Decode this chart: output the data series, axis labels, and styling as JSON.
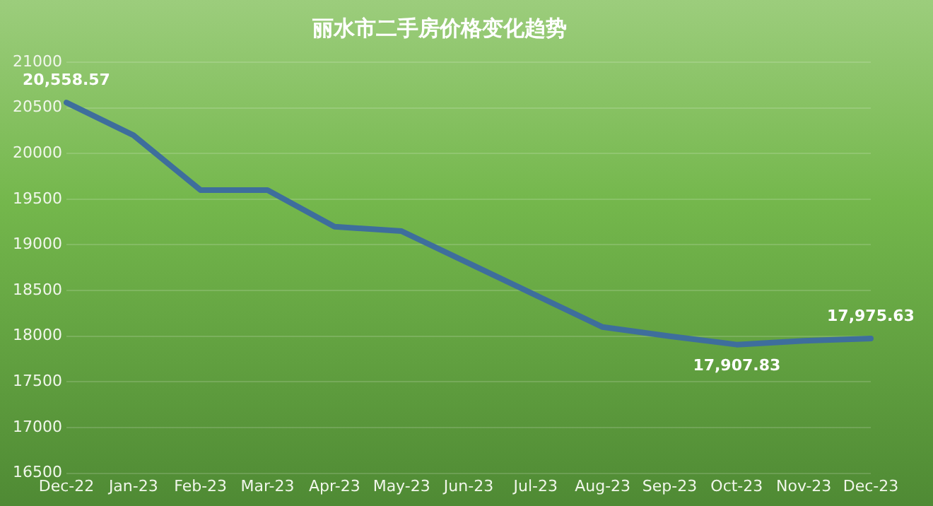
{
  "chart_data": {
    "type": "line",
    "title": "丽水市二手房价格变化趋势",
    "categories": [
      "Dec-22",
      "Jan-23",
      "Feb-23",
      "Mar-23",
      "Apr-23",
      "May-23",
      "Jun-23",
      "Jul-23",
      "Aug-23",
      "Sep-23",
      "Oct-23",
      "Nov-23",
      "Dec-23"
    ],
    "series": [
      {
        "color": "#3e6e9c",
        "values": [
          20558.57,
          20200,
          19600,
          19600,
          19200,
          19150,
          18800,
          18450,
          18100,
          18000,
          17907.83,
          17950,
          17975.63
        ],
        "value_labels": [
          "20,558.57",
          null,
          null,
          null,
          null,
          null,
          null,
          null,
          null,
          null,
          "17,907.83",
          null,
          "17,975.63"
        ]
      }
    ],
    "ylim": [
      16500,
      21000
    ],
    "yticks": [
      16500,
      17000,
      17500,
      18000,
      18500,
      19000,
      19500,
      20000,
      20500,
      21000
    ],
    "grid": "y",
    "legend": false,
    "marker": "none",
    "line_style": "solid"
  }
}
